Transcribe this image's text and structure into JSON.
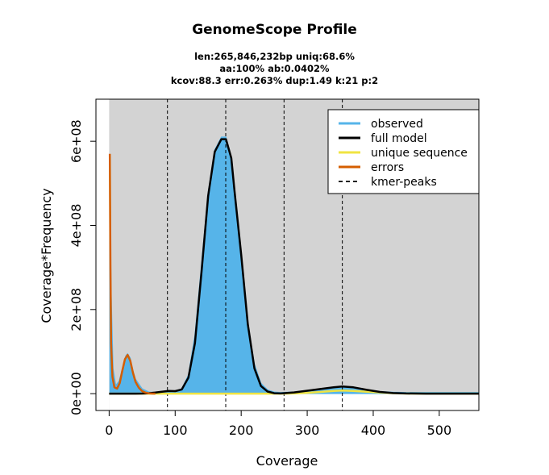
{
  "chart_data": {
    "type": "area",
    "title": "GenomeScope Profile",
    "subtitle_lines": [
      "len:265,846,232bp uniq:68.6%",
      "aa:100% ab:0.0402%",
      "kcov:88.3 err:0.263%  dup:1.49  k:21 p:2"
    ],
    "xlabel": "Coverage",
    "ylabel": "Coverage*Frequency",
    "xlim": [
      -20,
      560
    ],
    "ylim": [
      -40000000,
      700000000
    ],
    "xticks": [
      0,
      100,
      200,
      300,
      400,
      500
    ],
    "xtick_labels": [
      "0",
      "100",
      "200",
      "300",
      "400",
      "500"
    ],
    "yticks": [
      0,
      200000000,
      400000000,
      600000000
    ],
    "ytick_labels": [
      "0e+00",
      "2e+08",
      "4e+08",
      "6e+08"
    ],
    "background": "#d3d3d3",
    "legend_position": "top-right",
    "kmer_peaks": [
      88.3,
      176.6,
      264.9,
      353.2
    ],
    "series": [
      {
        "name": "observed",
        "color": "#56b4e9",
        "style": "fill",
        "x": [
          1,
          3,
          6,
          10,
          15,
          20,
          25,
          28,
          32,
          36,
          40,
          50,
          60,
          70,
          80,
          90,
          100,
          110,
          120,
          130,
          140,
          150,
          160,
          170,
          177,
          185,
          190,
          200,
          210,
          220,
          230,
          240,
          250,
          260,
          280,
          300,
          320,
          340,
          353,
          370,
          390,
          410,
          430,
          450,
          480,
          510,
          540,
          560
        ],
        "y": [
          560000000,
          250000000,
          60000000,
          20000000,
          30000000,
          60000000,
          90000000,
          95000000,
          85000000,
          55000000,
          35000000,
          12000000,
          4000000,
          3000000,
          4000000,
          5000000,
          6000000,
          12000000,
          45000000,
          140000000,
          310000000,
          480000000,
          580000000,
          610000000,
          610000000,
          560000000,
          480000000,
          330000000,
          170000000,
          70000000,
          25000000,
          9000000,
          4000000,
          3000000,
          4000000,
          6000000,
          9000000,
          13000000,
          15000000,
          13000000,
          9000000,
          5000000,
          3500000,
          3000000,
          3000000,
          3000000,
          3000000,
          3000000
        ]
      },
      {
        "name": "full model",
        "color": "#000000",
        "style": "line",
        "x": [
          0,
          10,
          20,
          30,
          40,
          50,
          60,
          70,
          80,
          90,
          100,
          110,
          120,
          130,
          140,
          150,
          160,
          170,
          177,
          185,
          190,
          200,
          210,
          220,
          230,
          240,
          250,
          260,
          280,
          300,
          320,
          340,
          353,
          370,
          390,
          410,
          430,
          450,
          480,
          510,
          540,
          560
        ],
        "y": [
          0,
          0,
          0,
          0,
          0,
          200000,
          1000000,
          2500000,
          4500000,
          6500000,
          6000000,
          10000000,
          38000000,
          120000000,
          290000000,
          470000000,
          575000000,
          605000000,
          605000000,
          560000000,
          480000000,
          330000000,
          165000000,
          60000000,
          18000000,
          5000000,
          1000000,
          500000,
          3000000,
          7000000,
          11000000,
          15000000,
          17000000,
          15000000,
          9000000,
          4000000,
          1500000,
          500000,
          100000,
          0,
          0,
          0
        ]
      },
      {
        "name": "unique sequence",
        "color": "#f0e442",
        "style": "line",
        "x": [
          0,
          100,
          200,
          260,
          280,
          300,
          320,
          340,
          353,
          370,
          390,
          410,
          430,
          450,
          480,
          510,
          540,
          560
        ],
        "y": [
          0,
          0,
          0,
          0,
          500000,
          2000000,
          4000000,
          6500000,
          7500000,
          6500000,
          4500000,
          2500000,
          1000000,
          300000,
          0,
          0,
          0,
          0
        ]
      },
      {
        "name": "errors",
        "color": "#d55e00",
        "style": "line",
        "x": [
          1,
          2,
          3,
          5,
          8,
          12,
          16,
          20,
          24,
          28,
          32,
          36,
          40,
          45,
          50,
          55,
          60,
          65,
          70
        ],
        "y": [
          570000000,
          300000000,
          120000000,
          40000000,
          15000000,
          12000000,
          25000000,
          55000000,
          82000000,
          92000000,
          78000000,
          50000000,
          28000000,
          14000000,
          6000000,
          2500000,
          800000,
          200000,
          0
        ]
      },
      {
        "name": "kmer-peaks",
        "color": "#000000",
        "style": "dashed"
      }
    ]
  }
}
